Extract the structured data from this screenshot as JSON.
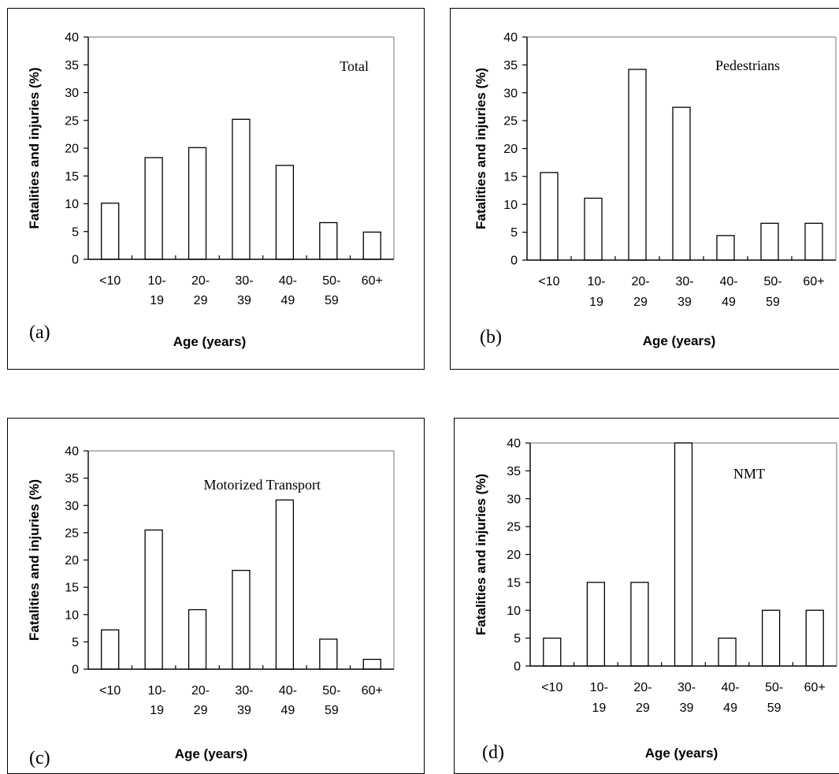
{
  "chart_data": [
    {
      "type": "bar",
      "panel_label": "(a)",
      "title": "Total",
      "xlabel": "Age (years)",
      "ylabel": "Fatalities and injuries (%)",
      "categories": [
        "<10",
        "10-19",
        "20-29",
        "30-39",
        "40-49",
        "50-59",
        "60+"
      ],
      "category_lines": [
        [
          "<10",
          ""
        ],
        [
          "10-",
          "19"
        ],
        [
          "20-",
          "29"
        ],
        [
          "30-",
          "39"
        ],
        [
          "40-",
          "49"
        ],
        [
          "50-",
          "59"
        ],
        [
          "60+",
          ""
        ]
      ],
      "values": [
        10.1,
        18.3,
        20.1,
        25.2,
        16.9,
        6.6,
        4.9
      ],
      "ylim": [
        0,
        40
      ],
      "yticks": [
        0,
        5,
        10,
        15,
        20,
        25,
        30,
        35,
        40
      ],
      "grid": false,
      "legend": "none"
    },
    {
      "type": "bar",
      "panel_label": "(b)",
      "title": "Pedestrians",
      "xlabel": "Age (years)",
      "ylabel": "Fatalities and injuries (%)",
      "categories": [
        "<10",
        "10-19",
        "20-29",
        "30-39",
        "40-49",
        "50-59",
        "60+"
      ],
      "category_lines": [
        [
          "<10",
          ""
        ],
        [
          "10-",
          "19"
        ],
        [
          "20-",
          "29"
        ],
        [
          "30-",
          "39"
        ],
        [
          "40-",
          "49"
        ],
        [
          "50-",
          "59"
        ],
        [
          "60+",
          ""
        ]
      ],
      "values": [
        15.7,
        11.1,
        34.2,
        27.4,
        4.4,
        6.6,
        6.6
      ],
      "ylim": [
        0,
        40
      ],
      "yticks": [
        0,
        5,
        10,
        15,
        20,
        25,
        30,
        35,
        40
      ],
      "grid": false,
      "legend": "none"
    },
    {
      "type": "bar",
      "panel_label": "(c)",
      "title": "Motorized Transport",
      "xlabel": "Age (years)",
      "ylabel": "Fatalities and injuries (%)",
      "categories": [
        "<10",
        "10-19",
        "20-29",
        "30-39",
        "40-49",
        "50-59",
        "60+"
      ],
      "category_lines": [
        [
          "<10",
          ""
        ],
        [
          "10-",
          "19"
        ],
        [
          "20-",
          "29"
        ],
        [
          "30-",
          "39"
        ],
        [
          "40-",
          "49"
        ],
        [
          "50-",
          "59"
        ],
        [
          "60+",
          ""
        ]
      ],
      "values": [
        7.2,
        25.5,
        10.9,
        18.1,
        31.0,
        5.5,
        1.8
      ],
      "ylim": [
        0,
        40
      ],
      "yticks": [
        0,
        5,
        10,
        15,
        20,
        25,
        30,
        35,
        40
      ],
      "grid": false,
      "legend": "none"
    },
    {
      "type": "bar",
      "panel_label": "(d)",
      "title": "NMT",
      "xlabel": "Age (years)",
      "ylabel": "Fatalities and injuries (%)",
      "categories": [
        "<10",
        "10-19",
        "20-29",
        "30-39",
        "40-49",
        "50-59",
        "60+"
      ],
      "category_lines": [
        [
          "<10",
          ""
        ],
        [
          "10-",
          "19"
        ],
        [
          "20-",
          "29"
        ],
        [
          "30-",
          "39"
        ],
        [
          "40-",
          "49"
        ],
        [
          "50-",
          "59"
        ],
        [
          "60+",
          ""
        ]
      ],
      "values": [
        5,
        15,
        15,
        40,
        5,
        10,
        10
      ],
      "ylim": [
        0,
        40
      ],
      "yticks": [
        0,
        5,
        10,
        15,
        20,
        25,
        30,
        35,
        40
      ],
      "grid": false,
      "legend": "none"
    }
  ]
}
